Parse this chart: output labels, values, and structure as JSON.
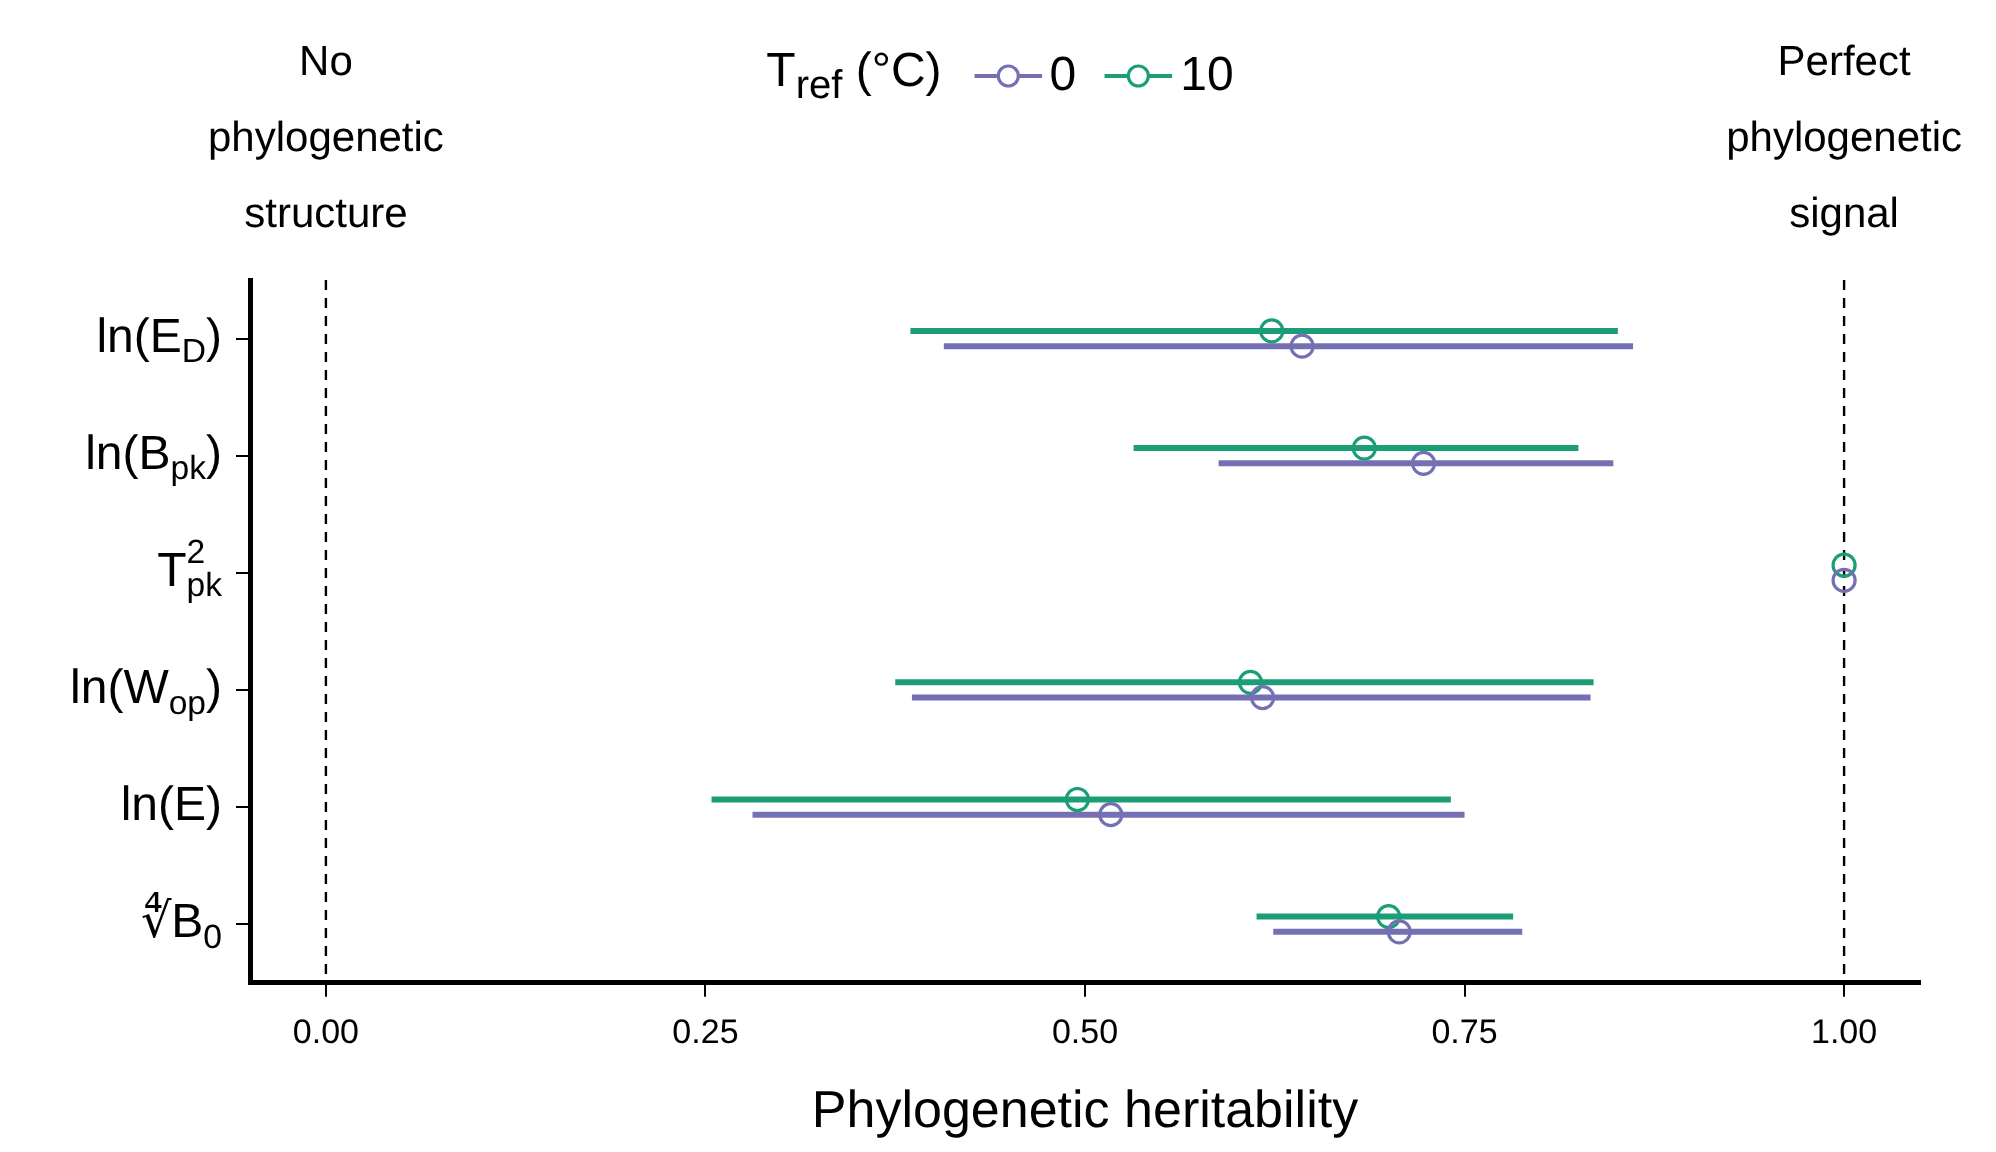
{
  "chart_data": {
    "type": "scatter",
    "orientation": "horizontal",
    "categories": [
      "ln(E$_{D}$)",
      "ln(B$_{pk}$)",
      "T$_{pk}$$^{2}$",
      "ln(W$_{op}$)",
      "ln(E)",
      "∜B$_{0}$"
    ],
    "series": [
      {
        "name": "0",
        "color": "#7570b3",
        "values": [
          0.643,
          0.723,
          1.0,
          0.617,
          0.517,
          0.707
        ],
        "errors": [
          [
            0.407,
            0.861
          ],
          [
            0.588,
            0.848
          ],
          null,
          [
            0.386,
            0.833
          ],
          [
            0.281,
            0.75
          ],
          [
            0.624,
            0.788
          ]
        ]
      },
      {
        "name": "10",
        "color": "#1b9e77",
        "values": [
          0.623,
          0.684,
          1.0,
          0.609,
          0.495,
          0.7
        ],
        "errors": [
          [
            0.385,
            0.851
          ],
          [
            0.532,
            0.825
          ],
          null,
          [
            0.375,
            0.835
          ],
          [
            0.254,
            0.741
          ],
          [
            0.613,
            0.782
          ]
        ]
      }
    ],
    "xlabel": "Phylogenetic heritability",
    "legend_title": "T$_{ref}$ (°C)",
    "legend": "top",
    "xlim": [
      -0.05,
      1.05
    ],
    "xticks": [
      {
        "value": 0,
        "label": "0.00"
      },
      {
        "value": 0.25,
        "label": "0.25"
      },
      {
        "value": 0.5,
        "label": "0.50"
      },
      {
        "value": 0.75,
        "label": "0.75"
      },
      {
        "value": 1,
        "label": "1.00"
      }
    ],
    "ref_lines": [
      {
        "axis": "x",
        "value": 0,
        "label": "No phylogenetic structure",
        "line_style": "dashed",
        "color": "#000000"
      },
      {
        "axis": "x",
        "value": 1,
        "label": "Perfect phylogenetic signal",
        "line_style": "dashed",
        "color": "#000000"
      }
    ],
    "marker": "circle",
    "grid": false
  }
}
